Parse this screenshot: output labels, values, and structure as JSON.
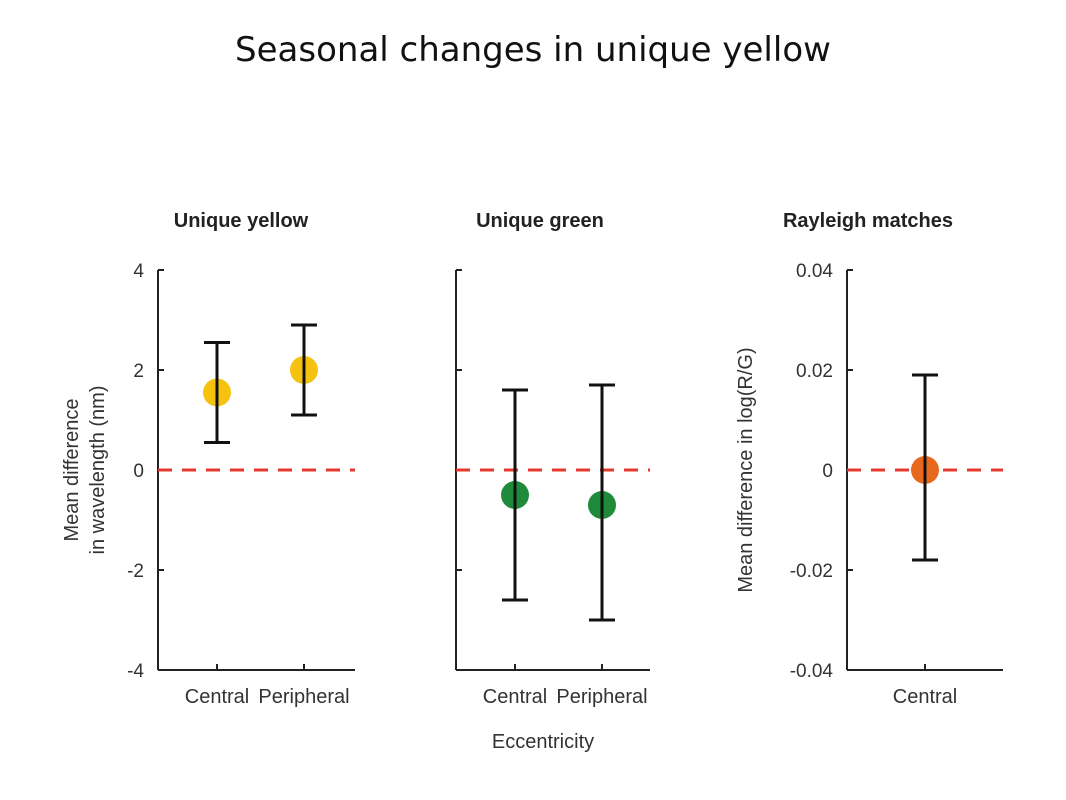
{
  "slide": {
    "title": "Seasonal changes in unique yellow"
  },
  "figure": {
    "shared_xlabel": "Eccentricity"
  },
  "colors": {
    "yellow": "#f4c20f",
    "green": "#1e8a3a",
    "orange": "#e8691e",
    "zero_line": "#e8392e",
    "axis": "#222222"
  },
  "chart_data": [
    {
      "type": "scatter",
      "title": "Unique yellow",
      "ylabel_lines": [
        "Mean difference",
        "in wavelength (nm)"
      ],
      "ylim": [
        -4,
        4
      ],
      "yticks": [
        4,
        2,
        0,
        -2,
        -4
      ],
      "ytick_labels": [
        "4",
        "2",
        "0",
        "-2",
        "-4"
      ],
      "categories": [
        "Central",
        "Peripheral"
      ],
      "values": [
        1.55,
        2.0
      ],
      "error_low": [
        0.55,
        1.1
      ],
      "error_high": [
        2.55,
        2.9
      ],
      "zero_line": 0,
      "marker_color": "#f4c20f"
    },
    {
      "type": "scatter",
      "title": "Unique green",
      "ylabel_lines": [],
      "ylim": [
        -4,
        4
      ],
      "yticks": [
        4,
        2,
        0,
        -2,
        -4
      ],
      "ytick_labels": [],
      "categories": [
        "Central",
        "Peripheral"
      ],
      "values": [
        -0.5,
        -0.7
      ],
      "error_low": [
        -2.6,
        -3.0
      ],
      "error_high": [
        1.6,
        1.7
      ],
      "zero_line": 0,
      "marker_color": "#1e8a3a"
    },
    {
      "type": "scatter",
      "title": "Rayleigh matches",
      "ylabel_lines": [
        "Mean difference in log(R/G)"
      ],
      "ylim": [
        -0.04,
        0.04
      ],
      "yticks": [
        0.04,
        0.02,
        0,
        -0.02,
        -0.04
      ],
      "ytick_labels": [
        "0.04",
        "0.02",
        "0",
        "-0.02",
        "-0.04"
      ],
      "categories": [
        "Central"
      ],
      "values": [
        0.0
      ],
      "error_low": [
        -0.018
      ],
      "error_high": [
        0.019
      ],
      "zero_line": 0,
      "marker_color": "#e8691e"
    }
  ]
}
